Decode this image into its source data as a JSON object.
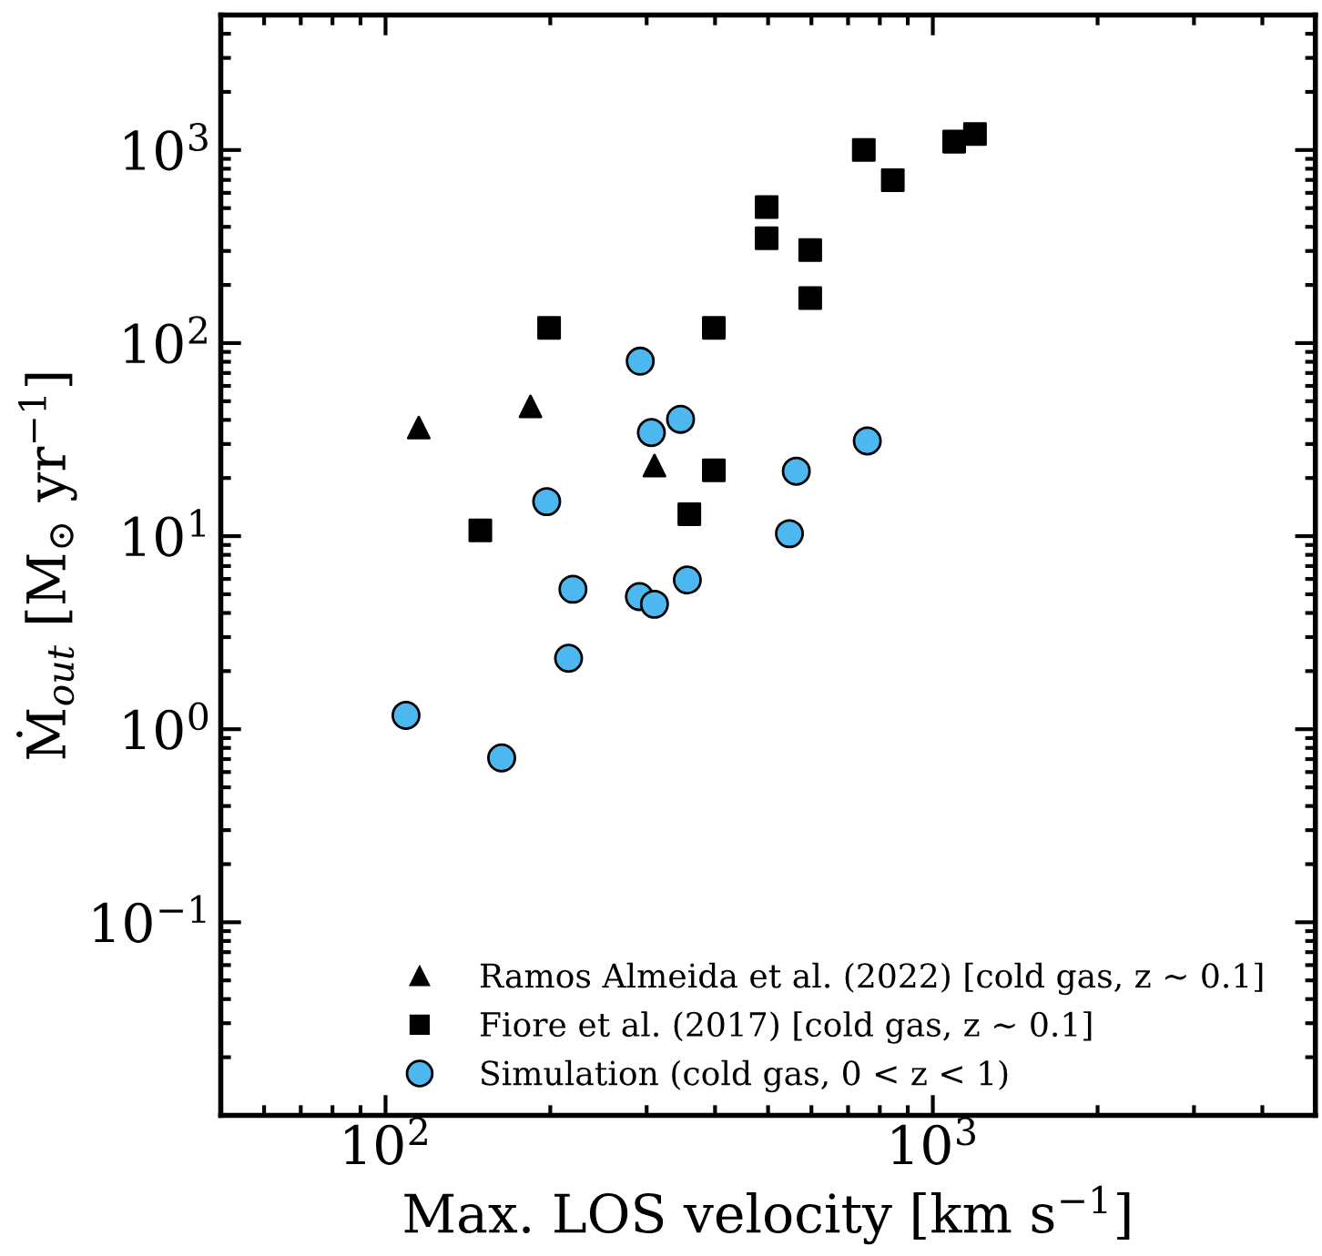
{
  "chart_data": {
    "type": "scatter",
    "xlabel": "Max. LOS velocity [km s$^{−1}$]",
    "ylabel": "Ṁ$_{out}$ [M$_{⊙}$ yr$^{−1}$]",
    "log": "xy",
    "xlim": [
      50,
      5000
    ],
    "ylim": [
      0.01,
      5000
    ],
    "xticks": [
      {
        "value": 100,
        "label": "10$^{2}$"
      },
      {
        "value": 1000,
        "label": "10$^{3}$"
      }
    ],
    "yticks": [
      {
        "value": 0.1,
        "label": "10$^{−1}$"
      },
      {
        "value": 1,
        "label": "10$^{0}$"
      },
      {
        "value": 10,
        "label": "10$^{1}$"
      },
      {
        "value": 100,
        "label": "10$^{2}$"
      },
      {
        "value": 1000,
        "label": "10$^{3}$"
      }
    ],
    "grid": false,
    "legend": "bottom right",
    "series": [
      {
        "name": "Ramos Almeida et al. (2022) [cold gas, z ∼ 0.1]",
        "color": "#000000",
        "marker": "triangle",
        "x": [
          115,
          184,
          310
        ],
        "values": [
          36.5,
          47,
          23.2
        ]
      },
      {
        "name": "Fiore et al. (2017) [cold gas, z ∼ 0.1]",
        "color": "#000000",
        "marker": "square",
        "x": [
          149,
          199,
          398,
          398,
          359,
          497,
          497,
          597,
          597,
          748,
          845,
          1094,
          1194
        ],
        "values": [
          10.7,
          120,
          120,
          21.9,
          13.0,
          506,
          349,
          303,
          171,
          1000,
          697,
          1105,
          1210
        ]
      },
      {
        "name": "Simulation (cold gas, 0 < z < 1)",
        "color": "#4db8f0",
        "marker": "circle",
        "x": [
          292,
          306,
          346,
          197,
          563,
          759,
          547,
          220,
          356,
          291,
          310,
          216,
          109,
          163
        ],
        "values": [
          80.6,
          34.4,
          40.3,
          15.1,
          21.7,
          31.1,
          10.3,
          5.31,
          5.93,
          4.86,
          4.44,
          2.33,
          1.18,
          0.71
        ]
      }
    ]
  }
}
